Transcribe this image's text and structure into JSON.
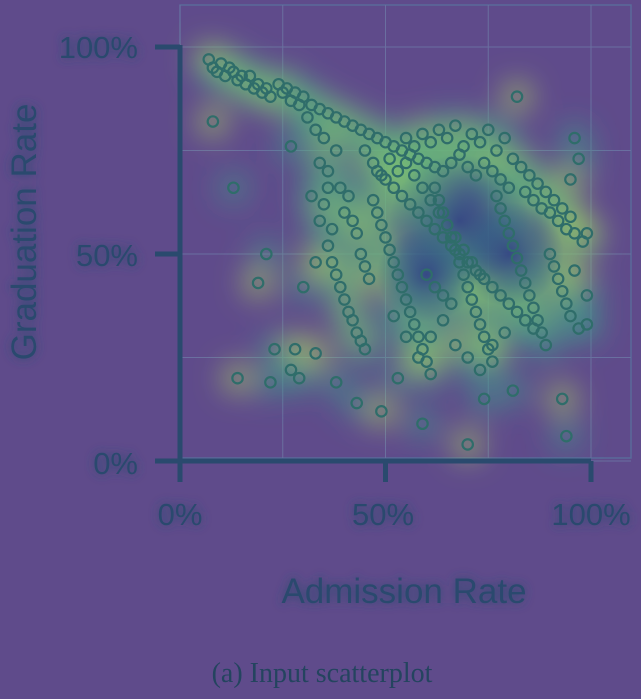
{
  "chart_data": {
    "type": "scatter",
    "title": "",
    "xlabel": "Admission Rate",
    "ylabel": "Graduation Rate",
    "xlim": [
      0,
      100
    ],
    "ylim": [
      0,
      100
    ],
    "x_ticks": [
      "0%",
      "50%",
      "100%"
    ],
    "y_ticks": [
      "0%",
      "50%",
      "100%"
    ],
    "grid": true,
    "caption": "(a) Input scatterplot",
    "colors": {
      "background": "#5f4b8b",
      "point_stroke": "#2f6d6a",
      "glow_low": "#3f9c88",
      "glow_high": "#b6e35a",
      "dense_core": "#3b4a8c"
    },
    "series": [
      {
        "points": [
          [
            7,
            97
          ],
          [
            8,
            95
          ],
          [
            9,
            94
          ],
          [
            10,
            96
          ],
          [
            11,
            93
          ],
          [
            12,
            95
          ],
          [
            13,
            94
          ],
          [
            14,
            92
          ],
          [
            15,
            93
          ],
          [
            16,
            91
          ],
          [
            17,
            93
          ],
          [
            18,
            90
          ],
          [
            19,
            91
          ],
          [
            20,
            89
          ],
          [
            21,
            90
          ],
          [
            22,
            88
          ],
          [
            24,
            91
          ],
          [
            25,
            89
          ],
          [
            26,
            90
          ],
          [
            27,
            87
          ],
          [
            28,
            89
          ],
          [
            29,
            86
          ],
          [
            30,
            88
          ],
          [
            32,
            86
          ],
          [
            34,
            85
          ],
          [
            36,
            84
          ],
          [
            38,
            83
          ],
          [
            40,
            82
          ],
          [
            42,
            81
          ],
          [
            44,
            80
          ],
          [
            46,
            79
          ],
          [
            48,
            78
          ],
          [
            50,
            77
          ],
          [
            52,
            76
          ],
          [
            54,
            75
          ],
          [
            56,
            74
          ],
          [
            58,
            73
          ],
          [
            60,
            72
          ],
          [
            62,
            71
          ],
          [
            64,
            70
          ],
          [
            66,
            72
          ],
          [
            68,
            74
          ],
          [
            70,
            71
          ],
          [
            72,
            69
          ],
          [
            74,
            72
          ],
          [
            76,
            70
          ],
          [
            78,
            68
          ],
          [
            80,
            66
          ],
          [
            82,
            88
          ],
          [
            84,
            65
          ],
          [
            86,
            63
          ],
          [
            88,
            61
          ],
          [
            90,
            60
          ],
          [
            92,
            58
          ],
          [
            94,
            56
          ],
          [
            96,
            55
          ],
          [
            98,
            53
          ],
          [
            8,
            82
          ],
          [
            13,
            66
          ],
          [
            21,
            50
          ],
          [
            19,
            43
          ],
          [
            27,
            76
          ],
          [
            30,
            42
          ],
          [
            14,
            20
          ],
          [
            22,
            19
          ],
          [
            23,
            27
          ],
          [
            28,
            27
          ],
          [
            27,
            22
          ],
          [
            29,
            20
          ],
          [
            33,
            26
          ],
          [
            38,
            19
          ],
          [
            43,
            14
          ],
          [
            49,
            12
          ],
          [
            53,
            20
          ],
          [
            59,
            9
          ],
          [
            70,
            4
          ],
          [
            74,
            15
          ],
          [
            81,
            17
          ],
          [
            93,
            15
          ],
          [
            94,
            6
          ],
          [
            99,
            33
          ],
          [
            99,
            55
          ],
          [
            99,
            40
          ],
          [
            97,
            32
          ],
          [
            95,
            68
          ],
          [
            97,
            73
          ],
          [
            96,
            78
          ],
          [
            36,
            70
          ],
          [
            38,
            75
          ],
          [
            39,
            66
          ],
          [
            40,
            60
          ],
          [
            41,
            64
          ],
          [
            42,
            58
          ],
          [
            43,
            55
          ],
          [
            44,
            50
          ],
          [
            45,
            47
          ],
          [
            46,
            44
          ],
          [
            36,
            52
          ],
          [
            37,
            48
          ],
          [
            38,
            45
          ],
          [
            39,
            42
          ],
          [
            40,
            39
          ],
          [
            41,
            36
          ],
          [
            42,
            34
          ],
          [
            43,
            31
          ],
          [
            44,
            29
          ],
          [
            45,
            27
          ],
          [
            47,
            63
          ],
          [
            48,
            60
          ],
          [
            49,
            57
          ],
          [
            50,
            54
          ],
          [
            51,
            51
          ],
          [
            52,
            48
          ],
          [
            53,
            45
          ],
          [
            54,
            42
          ],
          [
            55,
            39
          ],
          [
            56,
            36
          ],
          [
            57,
            33
          ],
          [
            58,
            30
          ],
          [
            59,
            27
          ],
          [
            60,
            24
          ],
          [
            61,
            21
          ],
          [
            62,
            66
          ],
          [
            63,
            63
          ],
          [
            64,
            60
          ],
          [
            65,
            57
          ],
          [
            66,
            54
          ],
          [
            67,
            51
          ],
          [
            68,
            48
          ],
          [
            69,
            45
          ],
          [
            70,
            42
          ],
          [
            71,
            39
          ],
          [
            72,
            36
          ],
          [
            73,
            33
          ],
          [
            74,
            30
          ],
          [
            75,
            27
          ],
          [
            76,
            24
          ],
          [
            77,
            64
          ],
          [
            78,
            61
          ],
          [
            79,
            58
          ],
          [
            80,
            55
          ],
          [
            81,
            52
          ],
          [
            82,
            49
          ],
          [
            83,
            46
          ],
          [
            84,
            43
          ],
          [
            85,
            40
          ],
          [
            86,
            37
          ],
          [
            87,
            34
          ],
          [
            88,
            31
          ],
          [
            89,
            28
          ],
          [
            90,
            50
          ],
          [
            91,
            47
          ],
          [
            92,
            44
          ],
          [
            93,
            41
          ],
          [
            94,
            38
          ],
          [
            95,
            35
          ],
          [
            96,
            46
          ],
          [
            48,
            70
          ],
          [
            50,
            68
          ],
          [
            52,
            66
          ],
          [
            54,
            64
          ],
          [
            56,
            62
          ],
          [
            58,
            60
          ],
          [
            60,
            58
          ],
          [
            62,
            56
          ],
          [
            64,
            54
          ],
          [
            66,
            52
          ],
          [
            68,
            50
          ],
          [
            70,
            48
          ],
          [
            72,
            46
          ],
          [
            74,
            44
          ],
          [
            76,
            42
          ],
          [
            78,
            40
          ],
          [
            80,
            38
          ],
          [
            82,
            36
          ],
          [
            84,
            34
          ],
          [
            86,
            32
          ],
          [
            55,
            72
          ],
          [
            57,
            69
          ],
          [
            59,
            66
          ],
          [
            61,
            63
          ],
          [
            63,
            60
          ],
          [
            65,
            57
          ],
          [
            67,
            54
          ],
          [
            69,
            51
          ],
          [
            71,
            48
          ],
          [
            73,
            45
          ],
          [
            52,
            35
          ],
          [
            55,
            30
          ],
          [
            58,
            25
          ],
          [
            61,
            30
          ],
          [
            64,
            34
          ],
          [
            67,
            28
          ],
          [
            70,
            25
          ],
          [
            73,
            22
          ],
          [
            76,
            28
          ],
          [
            79,
            31
          ],
          [
            45,
            75
          ],
          [
            47,
            72
          ],
          [
            49,
            69
          ],
          [
            51,
            73
          ],
          [
            53,
            70
          ],
          [
            55,
            78
          ],
          [
            57,
            76
          ],
          [
            59,
            79
          ],
          [
            61,
            77
          ],
          [
            63,
            80
          ],
          [
            65,
            78
          ],
          [
            67,
            81
          ],
          [
            69,
            76
          ],
          [
            71,
            79
          ],
          [
            73,
            77
          ],
          [
            75,
            80
          ],
          [
            77,
            75
          ],
          [
            79,
            78
          ],
          [
            81,
            73
          ],
          [
            83,
            71
          ],
          [
            85,
            69
          ],
          [
            87,
            67
          ],
          [
            89,
            65
          ],
          [
            91,
            63
          ],
          [
            93,
            61
          ],
          [
            95,
            59
          ],
          [
            60,
            45
          ],
          [
            62,
            42
          ],
          [
            64,
            40
          ],
          [
            66,
            38
          ],
          [
            34,
            58
          ],
          [
            35,
            62
          ],
          [
            36,
            66
          ],
          [
            37,
            56
          ],
          [
            33,
            48
          ],
          [
            32,
            64
          ],
          [
            34,
            72
          ],
          [
            35,
            78
          ],
          [
            33,
            80
          ],
          [
            31,
            83
          ]
        ]
      }
    ]
  }
}
